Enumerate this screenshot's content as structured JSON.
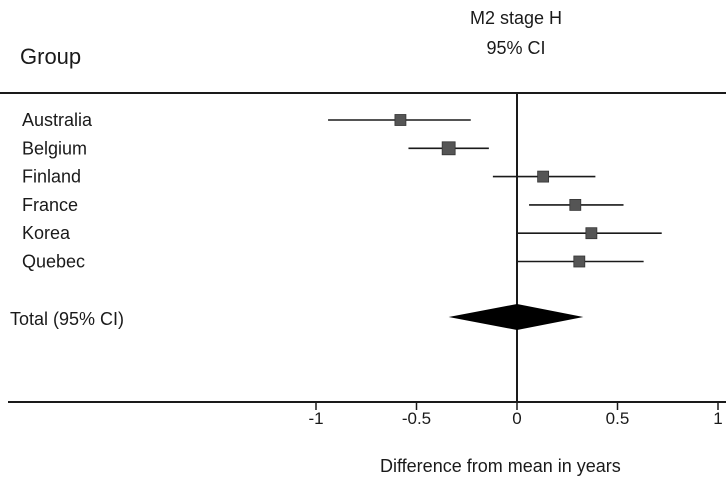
{
  "header": {
    "group_label": "Group",
    "title_line1": "M2 stage H",
    "title_line2": "95% CI"
  },
  "chart_data": {
    "type": "forest",
    "title": "M2 stage H",
    "subtitle": "95% CI",
    "xlabel": "Difference from mean in years",
    "ylabel": "Group",
    "xlim": [
      -1,
      1
    ],
    "xticks": [
      -1,
      -0.5,
      0,
      0.5,
      1
    ],
    "xtick_labels": [
      "-1",
      "-0.5",
      "0",
      "0.5",
      "1"
    ],
    "studies": [
      {
        "label": "Australia",
        "estimate": -0.58,
        "lower": -0.94,
        "upper": -0.23
      },
      {
        "label": "Belgium",
        "estimate": -0.34,
        "lower": -0.54,
        "upper": -0.14
      },
      {
        "label": "Finland",
        "estimate": 0.13,
        "lower": -0.12,
        "upper": 0.39
      },
      {
        "label": "France",
        "estimate": 0.29,
        "lower": 0.06,
        "upper": 0.53
      },
      {
        "label": "Korea",
        "estimate": 0.37,
        "lower": 0.0,
        "upper": 0.72
      },
      {
        "label": "Quebec",
        "estimate": 0.31,
        "lower": 0.0,
        "upper": 0.63
      }
    ],
    "total": {
      "label": "Total (95% CI)",
      "estimate": 0.0,
      "lower": -0.34,
      "upper": 0.33
    },
    "colors": {
      "marker": "#555555",
      "line": "#1a1a1a",
      "diamond": "#000000"
    }
  }
}
